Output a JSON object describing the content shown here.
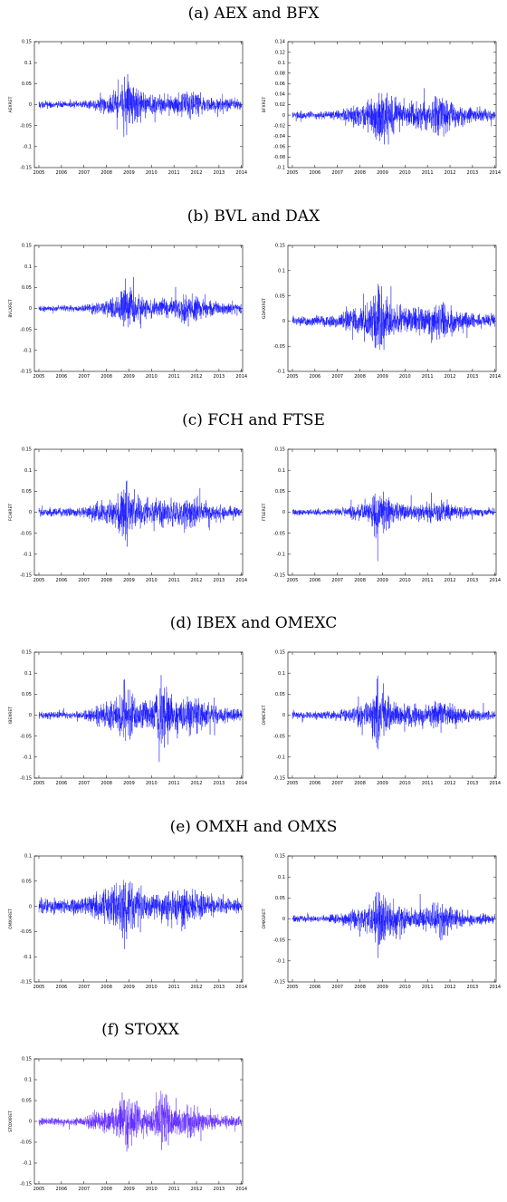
{
  "captions": {
    "a": "(a) AEX and BFX",
    "b": "(b) BVL and DAX",
    "c": "(c) FCH and FTSE",
    "d": "(d) IBEX and OMEXC",
    "e": "(e) OMXH and OMXS",
    "f": "(f) STOXX"
  },
  "colors": {
    "series": "#1010ff",
    "stoxx": "#5a22ff",
    "axis": "#000000"
  },
  "chart_data": [
    {
      "id": "aex",
      "type": "line",
      "ylabel": "AEXRET",
      "ylim": [
        -0.15,
        0.15
      ],
      "yticks": [
        -0.15,
        -0.1,
        -0.05,
        0,
        0.05,
        0.1,
        0.15
      ],
      "ytick_labels": [
        "-0.15",
        "-0.1",
        "-0.05",
        "0",
        "0.05",
        "0.1",
        "0.15"
      ],
      "xlim": [
        2004.8,
        2014.05
      ],
      "xticks": [
        2005,
        2006,
        2007,
        2008,
        2009,
        2010,
        2011,
        2012,
        2013,
        2014
      ],
      "xtick_labels": [
        "2005",
        "2006",
        "2007",
        "2008",
        "2009",
        "2010",
        "2011",
        "2012",
        "2013",
        "2014"
      ],
      "series": [
        {
          "x": [
            2005,
            2006,
            2007,
            2007.5,
            2008,
            2008.5,
            2008.8,
            2009,
            2009.5,
            2010,
            2010.5,
            2011,
            2011.6,
            2012,
            2012.5,
            2013,
            2014
          ],
          "amplitude": [
            0.012,
            0.01,
            0.012,
            0.02,
            0.03,
            0.045,
            0.11,
            0.075,
            0.045,
            0.03,
            0.03,
            0.03,
            0.05,
            0.035,
            0.025,
            0.02,
            0.015
          ]
        }
      ]
    },
    {
      "id": "bfx",
      "type": "line",
      "ylabel": "BFXRET",
      "ylim": [
        -0.1,
        0.14
      ],
      "yticks": [
        -0.1,
        -0.08,
        -0.06,
        -0.04,
        -0.02,
        0,
        0.02,
        0.04,
        0.06,
        0.08,
        0.1,
        0.12,
        0.14
      ],
      "ytick_labels": [
        "-0.1",
        "-0.08",
        "-0.06",
        "-0.04",
        "-0.02",
        "0",
        "0.02",
        "0.04",
        "0.06",
        "0.08",
        "0.1",
        "0.12",
        "0.14"
      ],
      "xlim": [
        2004.8,
        2014.05
      ],
      "xticks": [
        2005,
        2006,
        2007,
        2008,
        2009,
        2010,
        2011,
        2012,
        2013,
        2014
      ],
      "xtick_labels": [
        "2005",
        "2006",
        "2007",
        "2008",
        "2009",
        "2010",
        "2011",
        "2012",
        "2013",
        "2014"
      ],
      "series": [
        {
          "x": [
            2005,
            2006,
            2007,
            2007.5,
            2008,
            2008.5,
            2008.8,
            2009,
            2009.5,
            2010,
            2010.5,
            2011,
            2011.6,
            2012,
            2012.5,
            2013,
            2014
          ],
          "amplitude": [
            0.01,
            0.009,
            0.012,
            0.02,
            0.03,
            0.05,
            0.092,
            0.07,
            0.05,
            0.035,
            0.04,
            0.035,
            0.055,
            0.04,
            0.025,
            0.02,
            0.014
          ]
        }
      ]
    },
    {
      "id": "bvl",
      "type": "line",
      "ylabel": "BVLXRET",
      "ylim": [
        -0.15,
        0.15
      ],
      "yticks": [
        -0.15,
        -0.1,
        -0.05,
        0,
        0.05,
        0.1,
        0.15
      ],
      "ytick_labels": [
        "-0.15",
        "-0.1",
        "-0.05",
        "0",
        "0.05",
        "0.1",
        "0.15"
      ],
      "xlim": [
        2004.8,
        2014.05
      ],
      "xticks": [
        2005,
        2006,
        2007,
        2008,
        2009,
        2010,
        2011,
        2012,
        2013,
        2014
      ],
      "xtick_labels": [
        "2005",
        "2006",
        "2007",
        "2008",
        "2009",
        "2010",
        "2011",
        "2012",
        "2013",
        "2014"
      ],
      "series": [
        {
          "x": [
            2005,
            2006,
            2007,
            2007.5,
            2008,
            2008.5,
            2008.8,
            2009,
            2009.5,
            2010,
            2010.5,
            2011,
            2011.6,
            2012,
            2012.5,
            2013,
            2014
          ],
          "amplitude": [
            0.01,
            0.009,
            0.011,
            0.02,
            0.028,
            0.045,
            0.1,
            0.07,
            0.04,
            0.03,
            0.03,
            0.035,
            0.05,
            0.04,
            0.025,
            0.02,
            0.015
          ]
        }
      ]
    },
    {
      "id": "dax",
      "type": "line",
      "ylabel": "GDAXIRET",
      "ylim": [
        -0.1,
        0.15
      ],
      "yticks": [
        -0.1,
        -0.05,
        0,
        0.05,
        0.1,
        0.15
      ],
      "ytick_labels": [
        "-0.1",
        "-0.05",
        "0",
        "0.05",
        "0.1",
        "0.15"
      ],
      "xlim": [
        2004.8,
        2014.05
      ],
      "xticks": [
        2005,
        2006,
        2007,
        2008,
        2009,
        2010,
        2011,
        2012,
        2013,
        2014
      ],
      "xtick_labels": [
        "2005",
        "2006",
        "2007",
        "2008",
        "2009",
        "2010",
        "2011",
        "2012",
        "2013",
        "2014"
      ],
      "series": [
        {
          "x": [
            2005,
            2006,
            2007,
            2007.5,
            2008,
            2008.5,
            2008.8,
            2009,
            2009.5,
            2010,
            2010.5,
            2011,
            2011.6,
            2012,
            2012.5,
            2013,
            2014
          ],
          "amplitude": [
            0.015,
            0.014,
            0.016,
            0.03,
            0.04,
            0.055,
            0.11,
            0.075,
            0.05,
            0.035,
            0.035,
            0.04,
            0.065,
            0.04,
            0.028,
            0.02,
            0.016
          ]
        }
      ]
    },
    {
      "id": "fch",
      "type": "line",
      "ylabel": "FCHIRET",
      "ylim": [
        -0.15,
        0.15
      ],
      "yticks": [
        -0.15,
        -0.1,
        -0.05,
        0,
        0.05,
        0.1,
        0.15
      ],
      "ytick_labels": [
        "-0.15",
        "-0.1",
        "-0.05",
        "0",
        "0.05",
        "0.1",
        "0.15"
      ],
      "xlim": [
        2004.8,
        2014.05
      ],
      "xticks": [
        2005,
        2006,
        2007,
        2008,
        2009,
        2010,
        2011,
        2012,
        2013,
        2014
      ],
      "xtick_labels": [
        "2005",
        "2006",
        "2007",
        "2008",
        "2009",
        "2010",
        "2011",
        "2012",
        "2013",
        "2014"
      ],
      "series": [
        {
          "x": [
            2005,
            2006,
            2007,
            2007.5,
            2008,
            2008.5,
            2008.8,
            2009,
            2009.5,
            2010,
            2010.5,
            2011,
            2011.6,
            2012,
            2012.5,
            2013,
            2014
          ],
          "amplitude": [
            0.014,
            0.013,
            0.015,
            0.03,
            0.04,
            0.05,
            0.11,
            0.08,
            0.05,
            0.04,
            0.045,
            0.04,
            0.06,
            0.045,
            0.03,
            0.022,
            0.016
          ]
        }
      ]
    },
    {
      "id": "ftse",
      "type": "line",
      "ylabel": "FTSERET",
      "ylim": [
        -0.15,
        0.15
      ],
      "yticks": [
        -0.15,
        -0.1,
        -0.05,
        0,
        0.05,
        0.1,
        0.15
      ],
      "ytick_labels": [
        "-0.15",
        "-0.1",
        "-0.05",
        "0",
        "0.05",
        "0.1",
        "0.15"
      ],
      "xlim": [
        2004.8,
        2014.05
      ],
      "xticks": [
        2005,
        2006,
        2007,
        2008,
        2009,
        2010,
        2011,
        2012,
        2013,
        2014
      ],
      "xtick_labels": [
        "2005",
        "2006",
        "2007",
        "2008",
        "2009",
        "2010",
        "2011",
        "2012",
        "2013",
        "2014"
      ],
      "series": [
        {
          "x": [
            2005,
            2006,
            2007,
            2007.5,
            2008,
            2008.5,
            2008.8,
            2009,
            2009.5,
            2010,
            2010.5,
            2011,
            2011.6,
            2012,
            2012.5,
            2013,
            2014
          ],
          "amplitude": [
            0.01,
            0.009,
            0.011,
            0.02,
            0.028,
            0.04,
            0.1,
            0.065,
            0.04,
            0.03,
            0.028,
            0.03,
            0.04,
            0.03,
            0.02,
            0.016,
            0.012
          ]
        }
      ]
    },
    {
      "id": "ibex",
      "type": "line",
      "ylabel": "IBEXRET",
      "ylim": [
        -0.15,
        0.15
      ],
      "yticks": [
        -0.15,
        -0.1,
        -0.05,
        0,
        0.05,
        0.1,
        0.15
      ],
      "ytick_labels": [
        "-0.15",
        "-0.1",
        "-0.05",
        "0",
        "0.05",
        "0.1",
        "0.15"
      ],
      "xlim": [
        2004.8,
        2014.05
      ],
      "xticks": [
        2005,
        2006,
        2007,
        2008,
        2009,
        2010,
        2011,
        2012,
        2013,
        2014
      ],
      "xtick_labels": [
        "2005",
        "2006",
        "2007",
        "2008",
        "2009",
        "2010",
        "2011",
        "2012",
        "2013",
        "2014"
      ],
      "series": [
        {
          "x": [
            2005,
            2006,
            2007,
            2007.5,
            2008,
            2008.5,
            2008.8,
            2009,
            2009.5,
            2010,
            2010.5,
            2011,
            2011.6,
            2012,
            2012.5,
            2013,
            2014
          ],
          "amplitude": [
            0.012,
            0.011,
            0.014,
            0.03,
            0.04,
            0.05,
            0.11,
            0.08,
            0.05,
            0.045,
            0.14,
            0.05,
            0.065,
            0.06,
            0.04,
            0.025,
            0.018
          ]
        }
      ]
    },
    {
      "id": "omexc",
      "type": "line",
      "ylabel": "OMXCRET",
      "ylim": [
        -0.15,
        0.15
      ],
      "yticks": [
        -0.15,
        -0.1,
        -0.05,
        0,
        0.05,
        0.1,
        0.15
      ],
      "ytick_labels": [
        "-0.15",
        "-0.1",
        "-0.05",
        "0",
        "0.05",
        "0.1",
        "0.15"
      ],
      "xlim": [
        2004.8,
        2014.05
      ],
      "xticks": [
        2005,
        2006,
        2007,
        2008,
        2009,
        2010,
        2011,
        2012,
        2013,
        2014
      ],
      "xtick_labels": [
        "2005",
        "2006",
        "2007",
        "2008",
        "2009",
        "2010",
        "2011",
        "2012",
        "2013",
        "2014"
      ],
      "series": [
        {
          "x": [
            2005,
            2006,
            2007,
            2007.5,
            2008,
            2008.5,
            2008.8,
            2009,
            2009.5,
            2010,
            2010.5,
            2011,
            2011.6,
            2012,
            2012.5,
            2013,
            2014
          ],
          "amplitude": [
            0.012,
            0.011,
            0.013,
            0.025,
            0.035,
            0.05,
            0.13,
            0.07,
            0.045,
            0.035,
            0.035,
            0.035,
            0.05,
            0.035,
            0.025,
            0.02,
            0.015
          ]
        }
      ]
    },
    {
      "id": "omxh",
      "type": "line",
      "ylabel": "OMXHRET",
      "ylim": [
        -0.15,
        0.1
      ],
      "yticks": [
        -0.15,
        -0.1,
        -0.05,
        0,
        0.05,
        0.1
      ],
      "ytick_labels": [
        "-0.15",
        "-0.1",
        "-0.05",
        "0",
        "0.05",
        "0.1"
      ],
      "xlim": [
        2004.8,
        2014.05
      ],
      "xticks": [
        2005,
        2006,
        2007,
        2008,
        2009,
        2010,
        2011,
        2012,
        2013,
        2014
      ],
      "xtick_labels": [
        "2005",
        "2006",
        "2007",
        "2008",
        "2009",
        "2010",
        "2011",
        "2012",
        "2013",
        "2014"
      ],
      "series": [
        {
          "x": [
            2005,
            2006,
            2007,
            2007.5,
            2008,
            2008.5,
            2008.8,
            2009,
            2009.5,
            2010,
            2010.5,
            2011,
            2011.6,
            2012,
            2012.5,
            2013,
            2014
          ],
          "amplitude": [
            0.02,
            0.02,
            0.025,
            0.04,
            0.05,
            0.06,
            0.09,
            0.075,
            0.05,
            0.035,
            0.04,
            0.045,
            0.06,
            0.04,
            0.03,
            0.025,
            0.02
          ]
        }
      ]
    },
    {
      "id": "omxs",
      "type": "line",
      "ylabel": "OMXSRET",
      "ylim": [
        -0.15,
        0.15
      ],
      "yticks": [
        -0.15,
        -0.1,
        -0.05,
        0,
        0.05,
        0.1,
        0.15
      ],
      "ytick_labels": [
        "-0.15",
        "-0.1",
        "-0.05",
        "0",
        "0.05",
        "0.1",
        "0.15"
      ],
      "xlim": [
        2004.8,
        2014.05
      ],
      "xticks": [
        2005,
        2006,
        2007,
        2008,
        2009,
        2010,
        2011,
        2012,
        2013,
        2014
      ],
      "xtick_labels": [
        "2005",
        "2006",
        "2007",
        "2008",
        "2009",
        "2010",
        "2011",
        "2012",
        "2013",
        "2014"
      ],
      "series": [
        {
          "x": [
            2005,
            2006,
            2007,
            2007.5,
            2008,
            2008.5,
            2008.8,
            2009,
            2009.5,
            2010,
            2010.5,
            2011,
            2011.6,
            2012,
            2012.5,
            2013,
            2014
          ],
          "amplitude": [
            0.012,
            0.011,
            0.014,
            0.025,
            0.035,
            0.05,
            0.11,
            0.08,
            0.05,
            0.04,
            0.035,
            0.04,
            0.06,
            0.04,
            0.025,
            0.02,
            0.016
          ]
        }
      ]
    },
    {
      "id": "stoxx",
      "type": "line",
      "ylabel": "STOXXRET",
      "ylim": [
        -0.15,
        0.15
      ],
      "yticks": [
        -0.15,
        -0.1,
        -0.05,
        0,
        0.05,
        0.1,
        0.15
      ],
      "ytick_labels": [
        "-0.15",
        "-0.1",
        "-0.05",
        "0",
        "0.05",
        "0.1",
        "0.15"
      ],
      "xlim": [
        2004.8,
        2014.05
      ],
      "xticks": [
        2005,
        2006,
        2007,
        2008,
        2009,
        2010,
        2011,
        2012,
        2013,
        2014
      ],
      "xtick_labels": [
        "2005",
        "2006",
        "2007",
        "2008",
        "2009",
        "2010",
        "2011",
        "2012",
        "2013",
        "2014"
      ],
      "series": [
        {
          "x": [
            2005,
            2006,
            2007,
            2007.5,
            2008,
            2008.5,
            2008.8,
            2009,
            2009.5,
            2010,
            2010.5,
            2011,
            2011.6,
            2012,
            2012.5,
            2013,
            2014
          ],
          "amplitude": [
            0.013,
            0.012,
            0.014,
            0.03,
            0.04,
            0.05,
            0.11,
            0.08,
            0.05,
            0.04,
            0.1,
            0.04,
            0.06,
            0.045,
            0.03,
            0.02,
            0.016
          ]
        }
      ]
    }
  ]
}
